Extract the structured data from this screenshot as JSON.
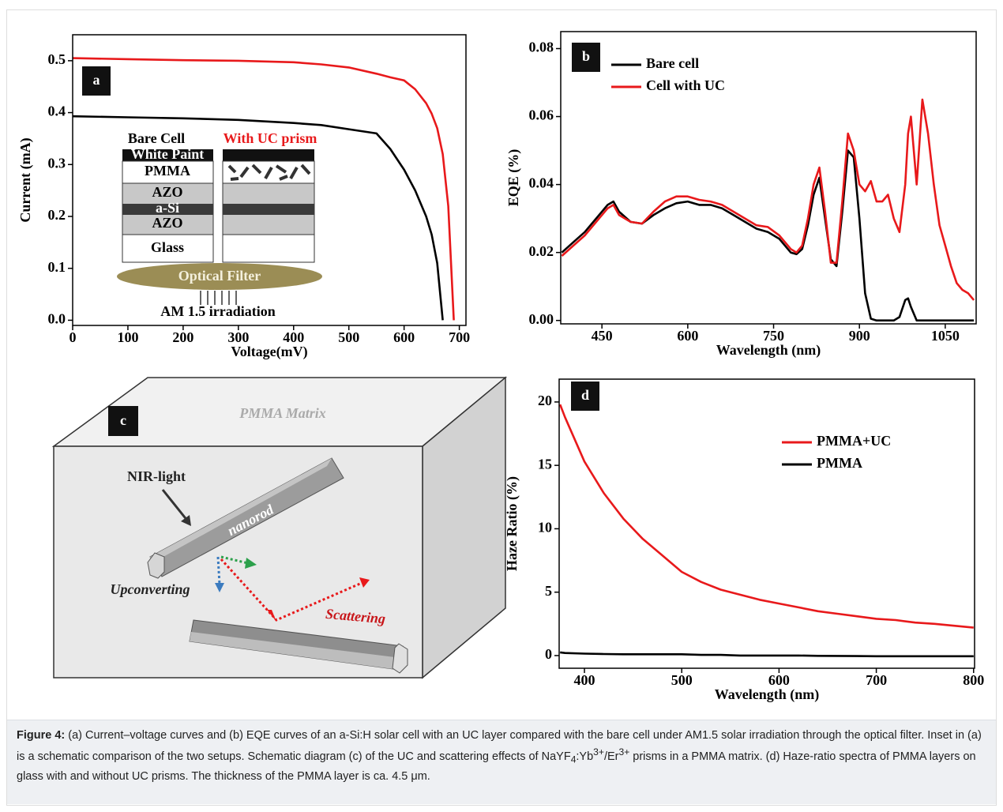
{
  "chart_data": [
    {
      "type": "line",
      "label": "a",
      "x_label": "Voltage(mV)",
      "y_label": "Current (mA)",
      "x": [
        0,
        100,
        200,
        300,
        400,
        450,
        500,
        550,
        575,
        600,
        620,
        640,
        650,
        660,
        670,
        680,
        690
      ],
      "series": [
        {
          "name": "Bare cell",
          "color": "#000000",
          "values": [
            0.393,
            0.391,
            0.389,
            0.386,
            0.38,
            0.376,
            0.368,
            0.36,
            0.33,
            0.29,
            0.25,
            0.2,
            0.165,
            0.11,
            0.0,
            null,
            null
          ]
        },
        {
          "name": "With UC prism",
          "color": "#e8191b",
          "values": [
            0.505,
            0.503,
            0.501,
            0.5,
            0.497,
            0.493,
            0.487,
            0.475,
            0.468,
            0.462,
            0.445,
            0.418,
            0.398,
            0.37,
            0.32,
            0.22,
            0.0
          ]
        }
      ],
      "xlim": [
        0,
        712
      ],
      "ylim": [
        -0.01,
        0.55
      ],
      "xticks": [
        0,
        100,
        200,
        300,
        400,
        500,
        600,
        700
      ],
      "yticks": [
        {
          "value": 0,
          "label": "0.0"
        },
        0.1,
        0.2,
        0.3,
        0.4,
        0.5
      ],
      "inset": {
        "left_title": "Bare Cell",
        "right_title": "With UC prism",
        "layers": [
          "White Paint",
          "PMMA",
          "AZO",
          "a-Si",
          "AZO",
          "Glass"
        ],
        "filter": "Optical Filter",
        "source": "AM 1.5 irradiation"
      }
    },
    {
      "type": "line",
      "label": "b",
      "x_label": "Wavelength (nm)",
      "y_label": "EQE (%)",
      "legend": "upper left",
      "x": [
        380,
        400,
        420,
        440,
        460,
        470,
        480,
        500,
        520,
        540,
        560,
        580,
        600,
        620,
        640,
        660,
        680,
        700,
        720,
        740,
        760,
        780,
        790,
        800,
        810,
        820,
        830,
        840,
        850,
        860,
        870,
        880,
        890,
        900,
        910,
        920,
        930,
        940,
        950,
        960,
        970,
        980,
        985,
        990,
        1000,
        1010,
        1020,
        1030,
        1040,
        1050,
        1060,
        1070,
        1080,
        1090,
        1100
      ],
      "series": [
        {
          "name": "Bare cell",
          "color": "#000000",
          "values": [
            0.02,
            0.023,
            0.026,
            0.03,
            0.034,
            0.035,
            0.032,
            0.029,
            0.0285,
            0.031,
            0.033,
            0.0345,
            0.035,
            0.034,
            0.034,
            0.033,
            0.031,
            0.029,
            0.027,
            0.026,
            0.024,
            0.02,
            0.0195,
            0.021,
            0.028,
            0.037,
            0.042,
            0.03,
            0.018,
            0.016,
            0.032,
            0.05,
            0.048,
            0.03,
            0.008,
            0.0005,
            0,
            0,
            0,
            0,
            0.001,
            0.006,
            0.0065,
            0.004,
            0,
            0,
            0,
            0,
            0,
            0,
            0,
            0,
            0,
            0,
            0
          ]
        },
        {
          "name": "Cell with UC",
          "color": "#e8191b",
          "values": [
            0.019,
            0.022,
            0.025,
            0.029,
            0.033,
            0.034,
            0.031,
            0.029,
            0.0285,
            0.032,
            0.035,
            0.0365,
            0.0365,
            0.0355,
            0.035,
            0.034,
            0.032,
            0.03,
            0.028,
            0.0275,
            0.025,
            0.021,
            0.02,
            0.022,
            0.03,
            0.04,
            0.045,
            0.032,
            0.017,
            0.017,
            0.035,
            0.055,
            0.05,
            0.04,
            0.038,
            0.041,
            0.035,
            0.035,
            0.037,
            0.03,
            0.026,
            0.04,
            0.055,
            0.06,
            0.04,
            0.065,
            0.055,
            0.04,
            0.028,
            0.022,
            0.016,
            0.011,
            0.009,
            0.008,
            0.006
          ]
        }
      ],
      "xlim": [
        378,
        1104
      ],
      "ylim": [
        -0.001,
        0.085
      ],
      "xticks": [
        450,
        600,
        750,
        900,
        1050
      ],
      "yticks": [
        {
          "value": 0,
          "label": "0.00"
        },
        {
          "value": 0.02,
          "label": "0.02"
        },
        {
          "value": 0.04,
          "label": "0.04"
        },
        {
          "value": 0.06,
          "label": "0.06"
        },
        {
          "value": 0.08,
          "label": "0.08"
        }
      ]
    },
    {
      "type": "line",
      "label": "d",
      "x_label": "Wavelength (nm)",
      "y_label": "Haze Ratio (%)",
      "legend": "upper right",
      "x": [
        375,
        380,
        400,
        420,
        440,
        460,
        480,
        500,
        520,
        540,
        560,
        580,
        600,
        620,
        640,
        660,
        680,
        700,
        720,
        740,
        760,
        780,
        800
      ],
      "series": [
        {
          "name": "PMMA+UC",
          "color": "#e8191b",
          "values": [
            19.8,
            18.8,
            15.3,
            12.8,
            10.8,
            9.2,
            7.9,
            6.6,
            5.8,
            5.2,
            4.8,
            4.4,
            4.1,
            3.8,
            3.5,
            3.3,
            3.1,
            2.9,
            2.8,
            2.6,
            2.5,
            2.35,
            2.2
          ]
        },
        {
          "name": "PMMA",
          "color": "#000000",
          "values": [
            0.25,
            0.2,
            0.15,
            0.12,
            0.1,
            0.1,
            0.1,
            0.1,
            0.05,
            0.05,
            0.0,
            0.0,
            0.0,
            0.0,
            -0.02,
            -0.03,
            -0.04,
            -0.05,
            -0.05,
            -0.05,
            -0.05,
            -0.05,
            -0.05
          ]
        }
      ],
      "xlim": [
        374,
        801
      ],
      "ylim": [
        -1,
        21.8
      ],
      "xticks": [
        400,
        500,
        600,
        700,
        800
      ],
      "yticks": [
        0,
        5,
        10,
        15,
        20
      ]
    }
  ],
  "diagram": {
    "label": "c",
    "matrix": "PMMA Matrix",
    "rod": "nanorod",
    "light": "NIR-light",
    "process_1": "Upconverting",
    "process_2": "Scattering"
  },
  "caption": {
    "label": "Figure 4:",
    "parts": [
      "(a) Current–voltage curves and (b) EQE curves of an a-Si:H solar cell with an UC layer compared with the bare cell under AM1.5 solar irradiation through the optical filter. Inset in (a) is a schematic comparison of the two setups. Schematic diagram (c) of the UC and scattering effects of NaYF",
      "4",
      ":Yb",
      "3+",
      "/Er",
      "3+",
      " prisms in a PMMA matrix. (d) Haze-ratio spectra of PMMA layers on glass with and without UC prisms. The thickness of the PMMA layer is ca. 4.5 μm."
    ]
  }
}
